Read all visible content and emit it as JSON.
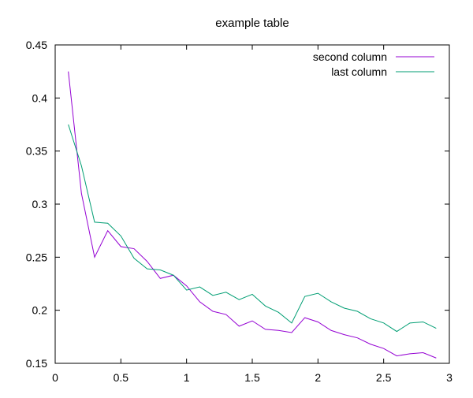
{
  "chart_data": {
    "type": "line",
    "title": "example table",
    "xlabel": "",
    "ylabel": "",
    "xlim": [
      0,
      3
    ],
    "ylim": [
      0.15,
      0.45
    ],
    "x_ticks": [
      0,
      0.5,
      1,
      1.5,
      2,
      2.5,
      3
    ],
    "x_tick_labels": [
      "0",
      "0.5",
      "1",
      "1.5",
      "2",
      "2.5",
      "3"
    ],
    "y_ticks": [
      0.15,
      0.2,
      0.25,
      0.3,
      0.35,
      0.4,
      0.45
    ],
    "y_tick_labels": [
      "0.15",
      "0.2",
      "0.25",
      "0.3",
      "0.35",
      "0.4",
      "0.45"
    ],
    "grid": false,
    "legend_position": "top-right",
    "x": [
      0.1,
      0.2,
      0.3,
      0.4,
      0.5,
      0.6,
      0.7,
      0.8,
      0.9,
      1.0,
      1.1,
      1.2,
      1.3,
      1.4,
      1.5,
      1.6,
      1.7,
      1.8,
      1.9,
      2.0,
      2.1,
      2.2,
      2.3,
      2.4,
      2.5,
      2.6,
      2.7,
      2.8,
      2.9
    ],
    "series": [
      {
        "name": "second column",
        "color": "#9400d3",
        "values": [
          0.425,
          0.31,
          0.25,
          0.275,
          0.26,
          0.258,
          0.246,
          0.23,
          0.233,
          0.223,
          0.208,
          0.199,
          0.196,
          0.185,
          0.19,
          0.182,
          0.181,
          0.179,
          0.193,
          0.189,
          0.181,
          0.177,
          0.174,
          0.168,
          0.164,
          0.157,
          0.159,
          0.16,
          0.155
        ]
      },
      {
        "name": "last column",
        "color": "#009e73",
        "values": [
          0.375,
          0.336,
          0.283,
          0.282,
          0.27,
          0.249,
          0.239,
          0.238,
          0.233,
          0.219,
          0.222,
          0.214,
          0.217,
          0.21,
          0.215,
          0.204,
          0.198,
          0.188,
          0.213,
          0.216,
          0.208,
          0.202,
          0.199,
          0.192,
          0.188,
          0.18,
          0.188,
          0.189,
          0.183
        ]
      }
    ]
  }
}
